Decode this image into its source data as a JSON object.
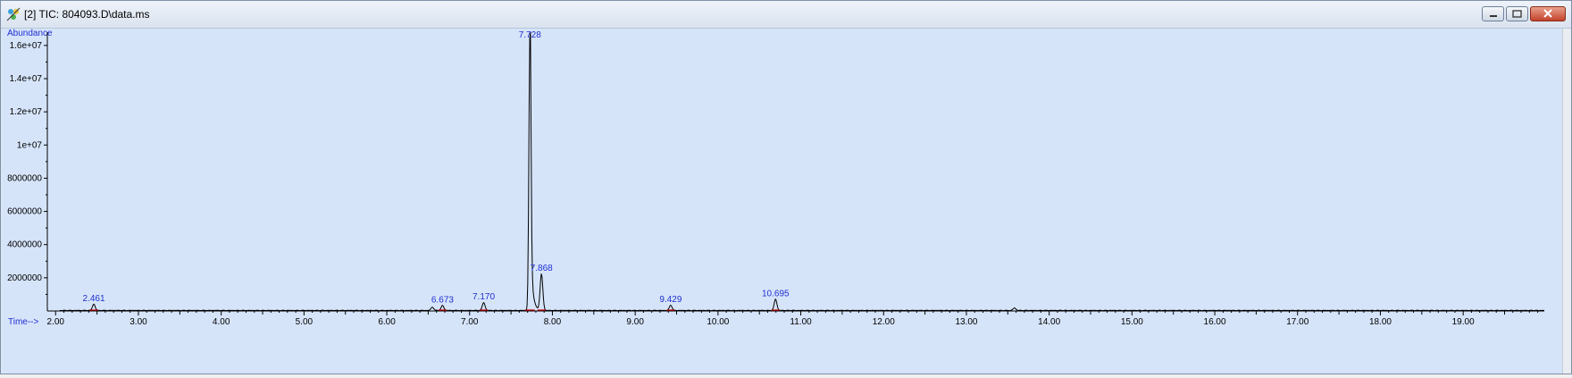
{
  "window": {
    "title": "[2] TIC: 804093.D\\data.ms",
    "buttons": [
      "minimize",
      "maximize",
      "close"
    ]
  },
  "colors": {
    "plot_background": "#d6e4fa",
    "trace": "#000000",
    "peak_label": "#1f2fd0",
    "baseline_marker": "#cc0000",
    "axis_label": "#1f2fd0"
  },
  "chart_data": {
    "type": "line",
    "ylabel": "Abundance",
    "xlabel": "Time-->",
    "xlim": [
      1.9,
      19.98
    ],
    "ylim": [
      0,
      16800000
    ],
    "x_ticks": [
      "2.00",
      "3.00",
      "4.00",
      "5.00",
      "6.00",
      "7.00",
      "8.00",
      "9.00",
      "10.00",
      "11.00",
      "12.00",
      "13.00",
      "14.00",
      "15.00",
      "16.00",
      "17.00",
      "18.00",
      "19.00"
    ],
    "y_ticks": [
      "2000000",
      "4000000",
      "6000000",
      "8000000",
      "1e+07",
      "1.2e+07",
      "1.4e+07",
      "1.6e+07"
    ],
    "peak_labels": [
      "2.461",
      "6.673",
      "7.170",
      "7.728",
      "7.868",
      "9.429",
      "10.695"
    ],
    "peaks": [
      {
        "x": 2.461,
        "y": 380000,
        "labeled": true
      },
      {
        "x": 6.55,
        "y": 200000,
        "labeled": false
      },
      {
        "x": 6.673,
        "y": 300000,
        "labeled": true
      },
      {
        "x": 7.17,
        "y": 480000,
        "labeled": true
      },
      {
        "x": 7.728,
        "y": 16500000,
        "labeled": true
      },
      {
        "x": 7.868,
        "y": 2200000,
        "labeled": true
      },
      {
        "x": 9.429,
        "y": 320000,
        "labeled": true
      },
      {
        "x": 10.695,
        "y": 680000,
        "labeled": true
      },
      {
        "x": 13.58,
        "y": 150000,
        "labeled": false
      }
    ],
    "grid": false
  }
}
